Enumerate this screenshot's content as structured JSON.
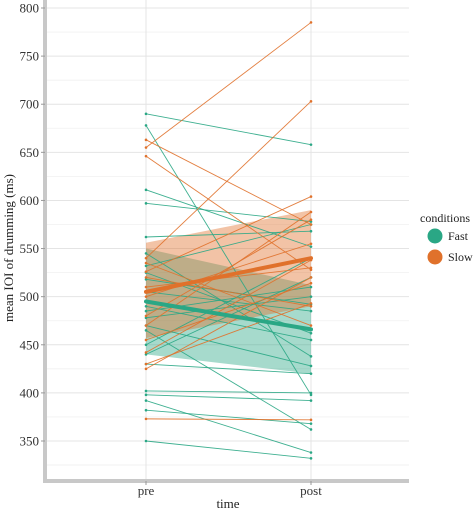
{
  "chart_data": {
    "type": "line",
    "xlabel": "time",
    "ylabel": "mean IOI of drumming (ms)",
    "categories": [
      "pre",
      "post"
    ],
    "ylim": [
      300,
      800
    ],
    "yticks": [
      350,
      400,
      450,
      500,
      550,
      600,
      650,
      700,
      750,
      800
    ],
    "grid": true,
    "legend": {
      "title": "conditions",
      "position": "right",
      "entries": [
        {
          "name": "Fast",
          "color": "#2aa785"
        },
        {
          "name": "Slow",
          "color": "#e0712b"
        }
      ]
    },
    "series": [
      {
        "name": "Fast",
        "color": "#2aa785",
        "mean": {
          "pre": 495,
          "post": 466
        },
        "ci": {
          "pre": [
            440,
            550
          ],
          "post": [
            420,
            512
          ]
        },
        "subjects": [
          [
            690,
            658
          ],
          [
            678,
            398
          ],
          [
            611,
            552
          ],
          [
            597,
            578
          ],
          [
            562,
            568
          ],
          [
            545,
            438
          ],
          [
            532,
            575
          ],
          [
            518,
            492
          ],
          [
            505,
            485
          ],
          [
            490,
            455
          ],
          [
            478,
            500
          ],
          [
            470,
            428
          ],
          [
            465,
            362
          ],
          [
            450,
            540
          ],
          [
            440,
            520
          ],
          [
            430,
            420
          ],
          [
            402,
            400
          ],
          [
            398,
            392
          ],
          [
            392,
            338
          ],
          [
            382,
            368
          ],
          [
            350,
            332
          ],
          [
            525,
            462
          ],
          [
            485,
            510
          ]
        ]
      },
      {
        "name": "Slow",
        "color": "#e0712b",
        "mean": {
          "pre": 505,
          "post": 540
        },
        "ci": {
          "pre": [
            457,
            556
          ],
          "post": [
            490,
            590
          ]
        },
        "subjects": [
          [
            655,
            785
          ],
          [
            663,
            575
          ],
          [
            646,
            528
          ],
          [
            540,
            703
          ],
          [
            526,
            604
          ],
          [
            510,
            530
          ],
          [
            520,
            490
          ],
          [
            500,
            555
          ],
          [
            480,
            580
          ],
          [
            470,
            588
          ],
          [
            455,
            514
          ],
          [
            442,
            538
          ],
          [
            430,
            493
          ],
          [
            425,
            520
          ],
          [
            373,
            372
          ],
          [
            535,
            470
          ]
        ]
      }
    ]
  }
}
